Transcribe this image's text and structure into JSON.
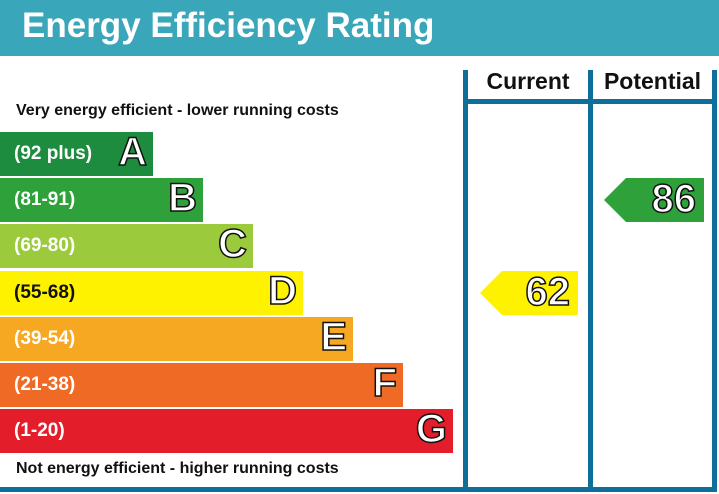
{
  "header": {
    "title": "Energy Efficiency Rating"
  },
  "columns": {
    "current": "Current",
    "potential": "Potential"
  },
  "notes": {
    "top": "Very energy efficient - lower running costs",
    "bottom": "Not energy efficient - higher running costs"
  },
  "chart_data": {
    "type": "bar",
    "title": "Energy Efficiency Rating",
    "bands": [
      {
        "letter": "A",
        "range": "(92 plus)",
        "color": "#1e8c3e"
      },
      {
        "letter": "B",
        "range": "(81-91)",
        "color": "#2ea13a"
      },
      {
        "letter": "C",
        "range": "(69-80)",
        "color": "#9bcb3c"
      },
      {
        "letter": "D",
        "range": "(55-68)",
        "color": "#fff200"
      },
      {
        "letter": "E",
        "range": "(39-54)",
        "color": "#f6a823"
      },
      {
        "letter": "F",
        "range": "(21-38)",
        "color": "#ee6a25"
      },
      {
        "letter": "G",
        "range": "(1-20)",
        "color": "#e31e2a"
      }
    ],
    "current": {
      "value": "62",
      "band": "D",
      "color": "#fff200"
    },
    "potential": {
      "value": "86",
      "band": "B",
      "color": "#2ea13a"
    }
  }
}
